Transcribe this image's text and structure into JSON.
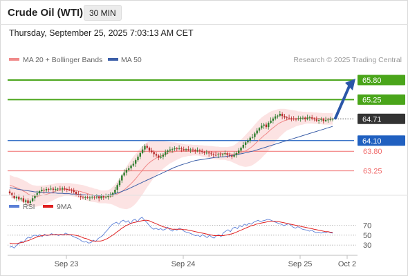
{
  "header": {
    "title": "Crude Oil (WTI)",
    "interval_label": "30 MIN",
    "timestamp": "Thursday, September 25, 2025 7:03:13 AM CET"
  },
  "legend": {
    "ma20_label": "MA 20 + Bollinger Bands",
    "ma20_color": "#f08a8a",
    "ma50_label": "MA 50",
    "ma50_color": "#3c5fa8",
    "source": "Research © 2025 Trading Central"
  },
  "rsi_legend": {
    "rsi_label": "RSI",
    "rsi_color": "#5b7fd6",
    "ma_label": "9MA",
    "ma_color": "#e02020"
  },
  "colors": {
    "up": "#2e7d2e",
    "down": "#b52a2a",
    "resistance": "#4aa51a",
    "pivot": "#2060c0",
    "support": "#f06c6c",
    "last": "#333333",
    "arrow": "#2a56a8"
  },
  "chart_data": [
    {
      "type": "line",
      "subtype": "candlestick",
      "ylim": [
        62.7,
        66.15
      ],
      "x_ticks": [
        "Sep 23",
        "Sep 24",
        "Sep 25",
        "Oct 2"
      ],
      "close": [
        62.62,
        62.55,
        62.48,
        62.52,
        62.45,
        62.48,
        62.38,
        62.42,
        62.35,
        62.4,
        62.48,
        62.55,
        62.62,
        62.68,
        62.72,
        62.7,
        62.74,
        62.73,
        62.75,
        62.72,
        62.74,
        62.75,
        62.73,
        62.76,
        62.74,
        62.72,
        62.71,
        62.7,
        62.66,
        62.6,
        62.56,
        62.52,
        62.5,
        62.51,
        62.49,
        62.5,
        62.52,
        62.5,
        62.52,
        62.48,
        62.54,
        62.5,
        62.52,
        62.55,
        62.58,
        62.63,
        62.72,
        62.85,
        62.98,
        63.12,
        63.2,
        63.28,
        63.32,
        63.4,
        63.45,
        63.55,
        63.65,
        63.75,
        63.85,
        63.95,
        63.9,
        63.82,
        63.78,
        63.72,
        63.68,
        63.62,
        63.65,
        63.7,
        63.78,
        63.82,
        63.85,
        63.86,
        63.88,
        63.87,
        63.88,
        63.86,
        63.85,
        63.86,
        63.84,
        63.85,
        63.83,
        63.8,
        63.82,
        63.8,
        63.78,
        63.75,
        63.76,
        63.74,
        63.72,
        63.7,
        63.69,
        63.71,
        63.7,
        63.72,
        63.74,
        63.7,
        63.68,
        63.65,
        63.7,
        63.75,
        63.82,
        63.9,
        63.98,
        64.05,
        64.1,
        64.18,
        64.2,
        64.3,
        64.38,
        64.45,
        64.52,
        64.55,
        64.48,
        64.6,
        64.66,
        64.72,
        64.78,
        64.8,
        64.85,
        64.79,
        64.75,
        64.74,
        64.73,
        64.72,
        64.71,
        64.7,
        64.72,
        64.73,
        64.74,
        64.7,
        64.74,
        64.75,
        64.72,
        64.7,
        64.66,
        64.68,
        64.7,
        64.65,
        64.68,
        64.69,
        64.7,
        64.71
      ],
      "ma20": [
        62.85,
        62.83,
        62.8,
        62.78,
        62.75,
        62.72,
        62.68,
        62.65,
        62.6,
        62.57,
        62.55,
        62.54,
        62.54,
        62.55,
        62.56,
        62.57,
        62.59,
        62.61,
        62.63,
        62.65,
        62.68,
        62.7,
        62.71,
        62.72,
        62.73,
        62.73,
        62.73,
        62.72,
        62.71,
        62.7,
        62.68,
        62.67,
        62.65,
        62.63,
        62.61,
        62.59,
        62.58,
        62.56,
        62.55,
        62.53,
        62.52,
        62.52,
        62.52,
        62.52,
        62.53,
        62.55,
        62.57,
        62.6,
        62.63,
        62.67,
        62.72,
        62.77,
        62.83,
        62.89,
        62.96,
        63.03,
        63.11,
        63.19,
        63.27,
        63.35,
        63.42,
        63.48,
        63.53,
        63.57,
        63.61,
        63.64,
        63.67,
        63.7,
        63.72,
        63.74,
        63.76,
        63.77,
        63.79,
        63.8,
        63.81,
        63.82,
        63.82,
        63.82,
        63.83,
        63.83,
        63.83,
        63.83,
        63.83,
        63.82,
        63.81,
        63.8,
        63.79,
        63.78,
        63.77,
        63.76,
        63.75,
        63.75,
        63.74,
        63.74,
        63.74,
        63.73,
        63.73,
        63.72,
        63.72,
        63.73,
        63.74,
        63.76,
        63.78,
        63.81,
        63.85,
        63.89,
        63.94,
        64.0,
        64.06,
        64.12,
        64.18,
        64.24,
        64.29,
        64.35,
        64.41,
        64.46,
        64.51,
        64.56,
        64.6,
        64.63,
        64.66,
        64.68,
        64.69,
        64.7,
        64.71,
        64.72,
        64.72,
        64.73,
        64.73,
        64.74,
        64.74,
        64.74,
        64.74,
        64.73,
        64.73,
        64.72,
        64.72,
        64.71,
        64.71,
        64.71,
        64.71,
        64.71
      ],
      "bb_width": [
        0.28,
        0.28,
        0.28,
        0.29,
        0.3,
        0.3,
        0.31,
        0.31,
        0.32,
        0.31,
        0.3,
        0.3,
        0.29,
        0.28,
        0.28,
        0.27,
        0.26,
        0.25,
        0.24,
        0.23,
        0.22,
        0.21,
        0.2,
        0.19,
        0.18,
        0.18,
        0.18,
        0.18,
        0.18,
        0.18,
        0.19,
        0.19,
        0.2,
        0.2,
        0.2,
        0.2,
        0.2,
        0.19,
        0.19,
        0.19,
        0.18,
        0.18,
        0.18,
        0.19,
        0.21,
        0.25,
        0.3,
        0.36,
        0.42,
        0.48,
        0.54,
        0.6,
        0.64,
        0.67,
        0.69,
        0.7,
        0.7,
        0.69,
        0.68,
        0.66,
        0.63,
        0.6,
        0.56,
        0.52,
        0.48,
        0.45,
        0.42,
        0.39,
        0.36,
        0.33,
        0.3,
        0.28,
        0.26,
        0.24,
        0.22,
        0.2,
        0.18,
        0.17,
        0.16,
        0.16,
        0.15,
        0.15,
        0.15,
        0.15,
        0.16,
        0.16,
        0.17,
        0.17,
        0.18,
        0.18,
        0.18,
        0.18,
        0.18,
        0.18,
        0.18,
        0.19,
        0.2,
        0.22,
        0.25,
        0.29,
        0.33,
        0.37,
        0.41,
        0.45,
        0.48,
        0.51,
        0.53,
        0.55,
        0.56,
        0.57,
        0.57,
        0.56,
        0.55,
        0.53,
        0.51,
        0.48,
        0.45,
        0.42,
        0.39,
        0.36,
        0.33,
        0.3,
        0.28,
        0.26,
        0.24,
        0.22,
        0.2,
        0.19,
        0.18,
        0.17,
        0.16,
        0.16,
        0.16,
        0.16,
        0.16,
        0.16,
        0.16,
        0.16,
        0.16,
        0.16,
        0.16,
        0.16
      ],
      "ma50": [
        62.78,
        62.77,
        62.76,
        62.74,
        62.73,
        62.72,
        62.71,
        62.7,
        62.69,
        62.68,
        62.67,
        62.66,
        62.66,
        62.65,
        62.65,
        62.64,
        62.64,
        62.64,
        62.63,
        62.63,
        62.63,
        62.62,
        62.62,
        62.62,
        62.61,
        62.61,
        62.61,
        62.6,
        62.6,
        62.6,
        62.59,
        62.59,
        62.58,
        62.58,
        62.57,
        62.57,
        62.56,
        62.56,
        62.55,
        62.55,
        62.56,
        62.56,
        62.57,
        62.57,
        62.58,
        62.59,
        62.61,
        62.63,
        62.65,
        62.67,
        62.7,
        62.72,
        62.75,
        62.78,
        62.81,
        62.84,
        62.87,
        62.9,
        62.93,
        62.96,
        62.99,
        63.02,
        63.05,
        63.08,
        63.11,
        63.14,
        63.17,
        63.2,
        63.23,
        63.26,
        63.29,
        63.32,
        63.35,
        63.37,
        63.4,
        63.42,
        63.44,
        63.46,
        63.48,
        63.5,
        63.52,
        63.54,
        63.55,
        63.56,
        63.57,
        63.58,
        63.59,
        63.6,
        63.61,
        63.62,
        63.63,
        63.63,
        63.64,
        63.64,
        63.65,
        63.66,
        63.67,
        63.68,
        63.69,
        63.7,
        63.72,
        63.73,
        63.74,
        63.76,
        63.77,
        63.79,
        63.8,
        63.82,
        63.84,
        63.86,
        63.88,
        63.9,
        63.92,
        63.94,
        63.96,
        63.98,
        64.0,
        64.02,
        64.04,
        64.06,
        64.08,
        64.1,
        64.12,
        64.14,
        64.16,
        64.18,
        64.2,
        64.22,
        64.24,
        64.26,
        64.28,
        64.3,
        64.32,
        64.34,
        64.36,
        64.38,
        64.4,
        64.42,
        64.44,
        64.46,
        64.48,
        64.5
      ],
      "levels": [
        {
          "value": "65.80",
          "role": "resistance"
        },
        {
          "value": "65.25",
          "role": "resistance"
        },
        {
          "value": "64.71",
          "role": "last"
        },
        {
          "value": "64.10",
          "role": "pivot"
        },
        {
          "value": "63.80",
          "role": "support"
        },
        {
          "value": "63.25",
          "role": "support"
        }
      ],
      "forecast_arrow": {
        "from": 64.71,
        "to": 65.8
      }
    },
    {
      "type": "line",
      "title": "RSI",
      "ylim": [
        15,
        90
      ],
      "y_ticks": [
        "70",
        "50",
        "30"
      ],
      "rsi": [
        26,
        27,
        24,
        30,
        33,
        38,
        35,
        42,
        46,
        44,
        49,
        50,
        48,
        51,
        47,
        52,
        49,
        50,
        53,
        51,
        52,
        49,
        52,
        50,
        54,
        52,
        51,
        48,
        46,
        44,
        42,
        38,
        36,
        37,
        34,
        35,
        40,
        37,
        43,
        46,
        49,
        55,
        60,
        66,
        71,
        74,
        76,
        72,
        78,
        80,
        76,
        79,
        73,
        80,
        82,
        77,
        83,
        86,
        80,
        76,
        70,
        65,
        62,
        64,
        61,
        63,
        60,
        62,
        66,
        61,
        58,
        62,
        60,
        64,
        62,
        58,
        56,
        55,
        53,
        51,
        49,
        50,
        47,
        51,
        48,
        45,
        50,
        46,
        44,
        49,
        51,
        47,
        55,
        58,
        61,
        57,
        64,
        66,
        63,
        69,
        67,
        72,
        70,
        74,
        72,
        76,
        78,
        80,
        77,
        79,
        80,
        82,
        81,
        79,
        77,
        75,
        73,
        72,
        69,
        71,
        73,
        70,
        66,
        64,
        67,
        65,
        62,
        61,
        60,
        58,
        60,
        57,
        55,
        56,
        54,
        56,
        55,
        57,
        55,
        54
      ],
      "ma": [
        34,
        33,
        33,
        33,
        34,
        35,
        36,
        38,
        39,
        41,
        43,
        45,
        47,
        48,
        49,
        50,
        50,
        50,
        51,
        51,
        51,
        51,
        51,
        51,
        51,
        51,
        51,
        51,
        50,
        49,
        48,
        46,
        44,
        43,
        41,
        39,
        38,
        38,
        38,
        38,
        39,
        41,
        43,
        46,
        49,
        52,
        56,
        59,
        63,
        66,
        69,
        71,
        73,
        75,
        76,
        77,
        78,
        79,
        80,
        80,
        79,
        77,
        75,
        73,
        71,
        69,
        67,
        66,
        64,
        63,
        62,
        62,
        62,
        62,
        62,
        61,
        61,
        60,
        59,
        58,
        57,
        56,
        55,
        54,
        53,
        52,
        51,
        50,
        49,
        49,
        49,
        49,
        49,
        50,
        51,
        52,
        53,
        55,
        57,
        59,
        61,
        63,
        65,
        67,
        69,
        70,
        72,
        73,
        74,
        75,
        76,
        77,
        78,
        78,
        78,
        78,
        77,
        76,
        75,
        74,
        73,
        72,
        71,
        70,
        69,
        68,
        67,
        66,
        65,
        64,
        63,
        62,
        61,
        60,
        59,
        58,
        57,
        57,
        56,
        56
      ]
    }
  ]
}
